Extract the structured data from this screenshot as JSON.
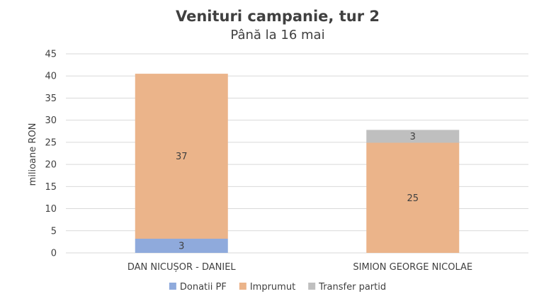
{
  "chart_data": {
    "type": "bar",
    "stacked": true,
    "title": "Venituri campanie, tur 2",
    "subtitle": "Până la 16 mai",
    "ylabel": "milioane RON",
    "ylim": [
      0,
      45
    ],
    "yticks": [
      0,
      5,
      10,
      15,
      20,
      25,
      30,
      35,
      40,
      45
    ],
    "grid": true,
    "legend_position": "bottom",
    "categories": [
      "DAN NICUȘOR - DANIEL",
      "SIMION GEORGE NICOLAE"
    ],
    "series": [
      {
        "name": "Donatii PF",
        "color": "#8faadc",
        "values": [
          3.2,
          0
        ],
        "labels": [
          "3",
          ""
        ]
      },
      {
        "name": "Imprumut",
        "color": "#ebb48a",
        "values": [
          37.3,
          24.9
        ],
        "labels": [
          "37",
          "25"
        ]
      },
      {
        "name": "Transfer partid",
        "color": "#bfbfbf",
        "values": [
          0,
          2.9
        ],
        "labels": [
          "",
          "3"
        ]
      }
    ]
  }
}
